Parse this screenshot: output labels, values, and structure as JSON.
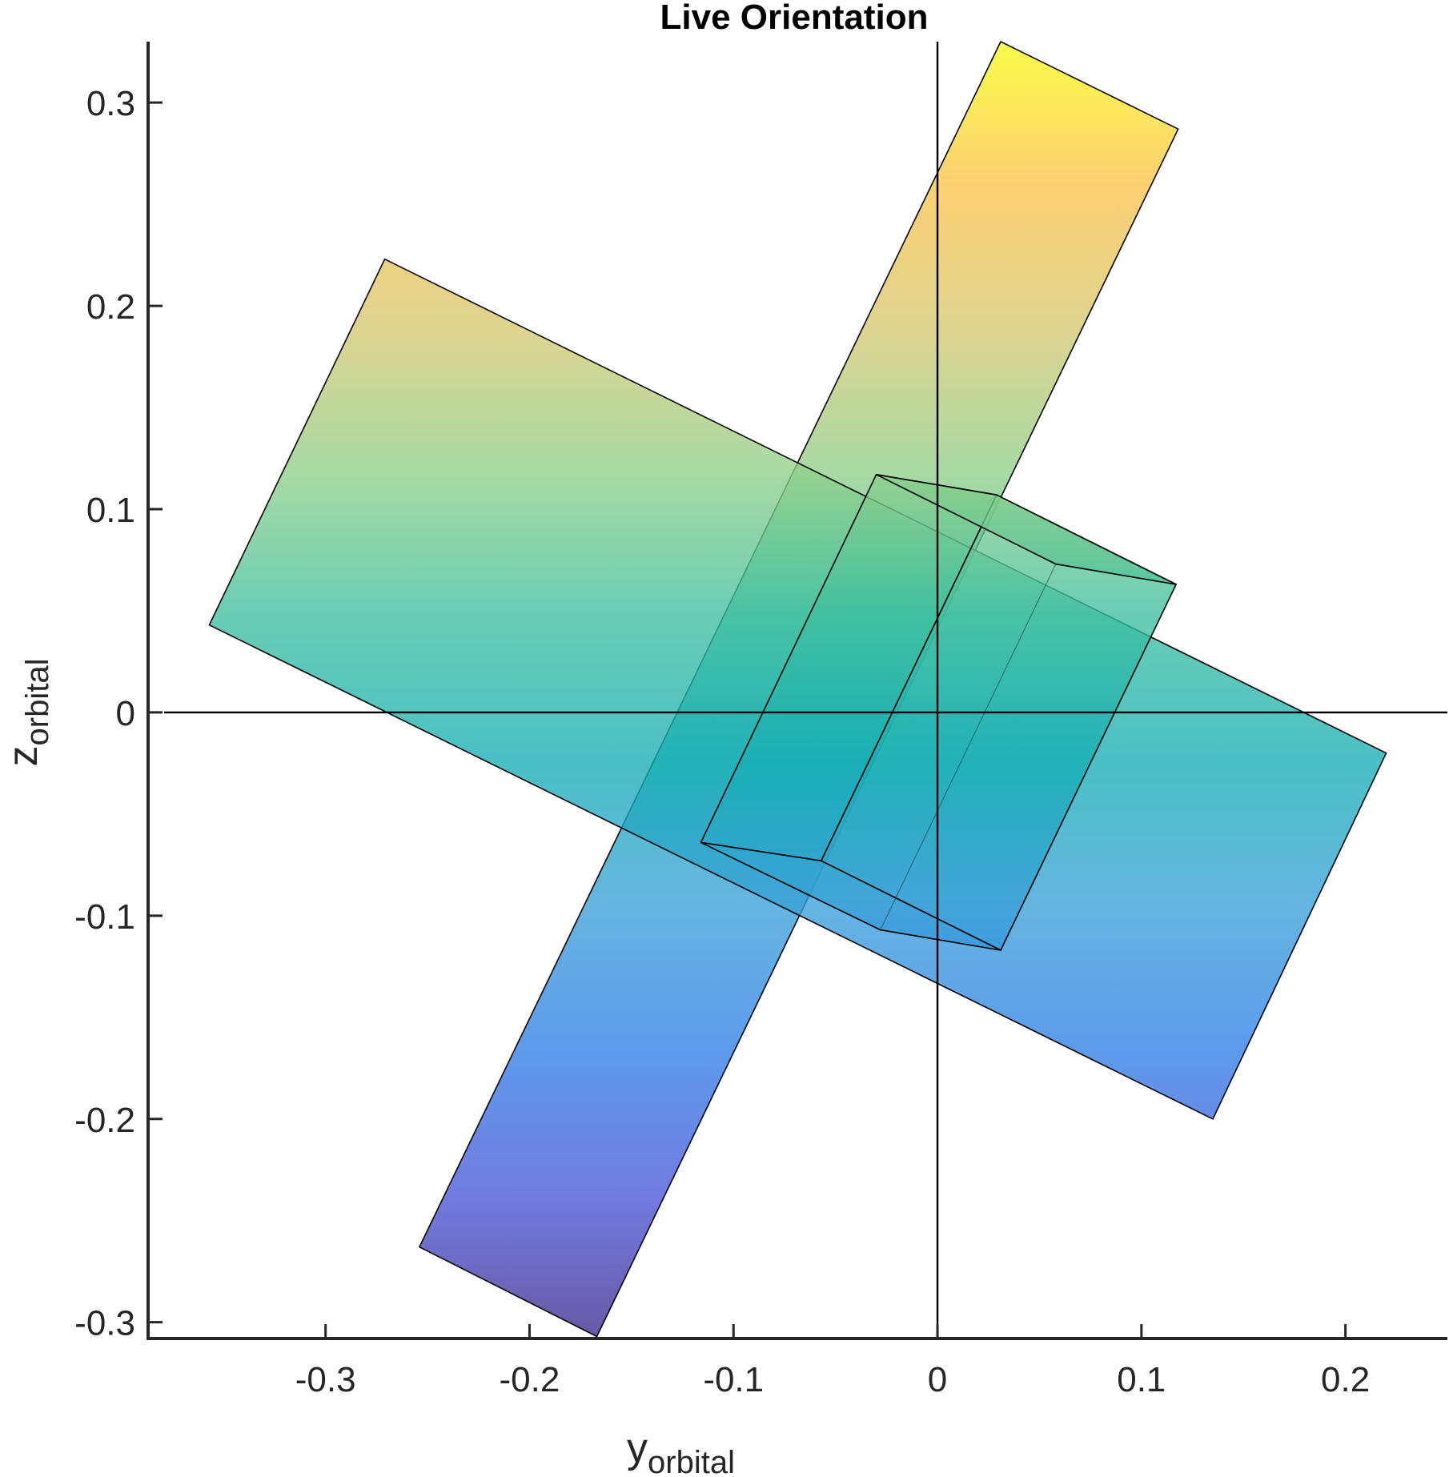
{
  "chart_data": {
    "type": "area",
    "title": "Live Orientation",
    "xlabel": {
      "main": "y",
      "sub": "orbital"
    },
    "ylabel": {
      "main": "z",
      "sub": "orbital"
    },
    "xlim": [
      -0.387,
      0.25
    ],
    "ylim": [
      -0.308,
      0.33
    ],
    "x_ticks": [
      -0.3,
      -0.2,
      -0.1,
      0,
      0.1,
      0.2
    ],
    "x_tick_labels": [
      "-0.3",
      "-0.2",
      "-0.1",
      "0",
      "0.1",
      "0.2"
    ],
    "y_ticks": [
      -0.3,
      -0.2,
      -0.1,
      0,
      0.1,
      0.2,
      0.3
    ],
    "y_tick_labels": [
      "-0.3",
      "-0.2",
      "-0.1",
      "0",
      "0.1",
      "0.2",
      "0.3"
    ],
    "grid": false,
    "origin_axes": true,
    "colormap": "parula",
    "colormap_stops": [
      "#3e2a8c",
      "#4a56d8",
      "#2f7ee6",
      "#3aa0d8",
      "#16aeb4",
      "#3ebfa0",
      "#8fcf8a",
      "#d4c870",
      "#fbc24a",
      "#f9fb14"
    ],
    "color_range": [
      -0.308,
      0.33
    ],
    "series": [
      {
        "part": "boom",
        "vertices": [
          [
            0.031,
            0.33
          ],
          [
            0.118,
            0.287
          ],
          [
            -0.167,
            -0.307
          ],
          [
            -0.254,
            -0.263
          ]
        ]
      },
      {
        "part": "panel",
        "vertices": [
          [
            -0.271,
            0.223
          ],
          [
            0.22,
            -0.02
          ],
          [
            0.135,
            -0.2
          ],
          [
            -0.357,
            0.043
          ]
        ]
      },
      {
        "part": "body-front",
        "vertices": [
          [
            -0.03,
            0.117
          ],
          [
            0.029,
            0.107
          ],
          [
            -0.057,
            -0.073
          ],
          [
            -0.116,
            -0.064
          ]
        ]
      },
      {
        "part": "body-right",
        "vertices": [
          [
            0.029,
            0.107
          ],
          [
            0.117,
            0.063
          ],
          [
            0.031,
            -0.117
          ],
          [
            -0.057,
            -0.073
          ]
        ]
      },
      {
        "part": "body-top",
        "vertices": [
          [
            -0.03,
            0.117
          ],
          [
            0.029,
            0.107
          ],
          [
            0.117,
            0.063
          ],
          [
            0.058,
            0.073
          ]
        ]
      },
      {
        "part": "body-bottom",
        "vertices": [
          [
            -0.116,
            -0.064
          ],
          [
            -0.057,
            -0.073
          ],
          [
            0.031,
            -0.117
          ],
          [
            -0.028,
            -0.107
          ]
        ]
      }
    ],
    "hidden_edges": [
      [
        [
          -0.03,
          0.117
        ],
        [
          0.058,
          0.073
        ]
      ],
      [
        [
          0.058,
          0.073
        ],
        [
          0.117,
          0.063
        ]
      ],
      [
        [
          0.058,
          0.073
        ],
        [
          -0.028,
          -0.107
        ]
      ],
      [
        [
          -0.116,
          -0.064
        ],
        [
          -0.028,
          -0.107
        ]
      ],
      [
        [
          -0.028,
          -0.107
        ],
        [
          0.031,
          -0.117
        ]
      ]
    ]
  }
}
